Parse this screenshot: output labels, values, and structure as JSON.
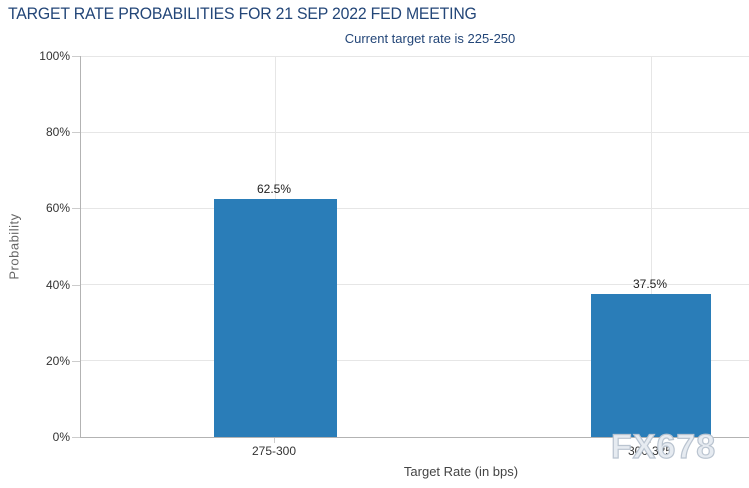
{
  "header": {
    "title": "TARGET RATE PROBABILITIES FOR 21 SEP 2022 FED MEETING",
    "subtitle": "Current target rate is 225-250"
  },
  "watermark": "FX678",
  "colors": {
    "title_text": "#234678",
    "bar": "#2a7db8",
    "gridline": "#e6e6e6",
    "axis_line": "#b3b3b3",
    "tick_text": "#333333",
    "watermark": "#ccd5de"
  },
  "chart_data": {
    "type": "bar",
    "title": "TARGET RATE PROBABILITIES FOR 21 SEP 2022 FED MEETING",
    "subtitle": "Current target rate is 225-250",
    "categories": [
      "275-300",
      "300-325"
    ],
    "values": [
      62.5,
      37.5
    ],
    "value_labels": [
      "62.5%",
      "37.5%"
    ],
    "xlabel": "Target Rate (in bps)",
    "ylabel": "Probability",
    "ylim": [
      0,
      100
    ],
    "yticks": [
      0,
      20,
      40,
      60,
      80,
      100
    ],
    "ytick_labels": [
      "0%",
      "20%",
      "40%",
      "60%",
      "80%",
      "100%"
    ],
    "grid": true,
    "legend": false
  }
}
